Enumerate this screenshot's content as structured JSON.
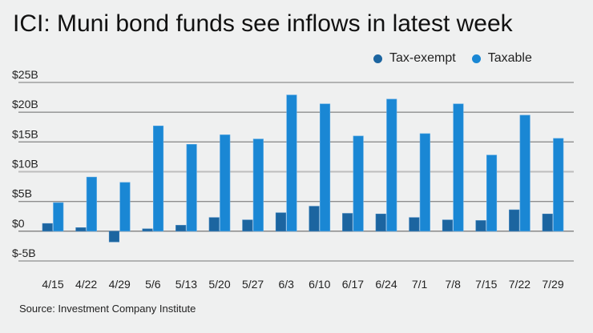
{
  "title": "ICI: Muni bond funds see inflows in latest week",
  "source": "Source: Investment Company Institute",
  "colors": {
    "background": "#eff0f0",
    "tax_exempt": "#1c65a0",
    "taxable": "#1a87d4",
    "gridline": "#8e8e8e"
  },
  "legend": [
    {
      "label": "Tax-exempt",
      "color": "#1c65a0"
    },
    {
      "label": "Taxable",
      "color": "#1a87d4"
    }
  ],
  "chart_data": {
    "type": "bar",
    "title": "ICI: Muni bond funds see inflows in latest week",
    "xlabel": "",
    "ylabel": "",
    "ylim": [
      -5,
      25
    ],
    "yticks": [
      25,
      20,
      15,
      10,
      5,
      0,
      -5
    ],
    "ytick_labels": [
      "$25B",
      "$20B",
      "$15B",
      "$10B",
      "$5B",
      "$0",
      "$-5B"
    ],
    "grid": true,
    "legend_position": "top-right",
    "categories": [
      "4/15",
      "4/22",
      "4/29",
      "5/6",
      "5/13",
      "5/20",
      "5/27",
      "6/3",
      "6/10",
      "6/17",
      "6/24",
      "7/1",
      "7/8",
      "7/15",
      "7/22",
      "7/29"
    ],
    "series": [
      {
        "name": "Tax-exempt",
        "values": [
          1.3,
          0.6,
          -1.8,
          0.4,
          1.0,
          2.3,
          1.9,
          3.1,
          4.2,
          3.0,
          2.9,
          2.3,
          1.9,
          1.8,
          3.6,
          2.9
        ]
      },
      {
        "name": "Taxable",
        "values": [
          4.8,
          9.1,
          8.2,
          17.7,
          14.6,
          16.2,
          15.5,
          22.9,
          21.4,
          16.0,
          22.2,
          16.4,
          21.4,
          12.8,
          19.5,
          15.6
        ]
      }
    ],
    "units": "billions USD"
  }
}
